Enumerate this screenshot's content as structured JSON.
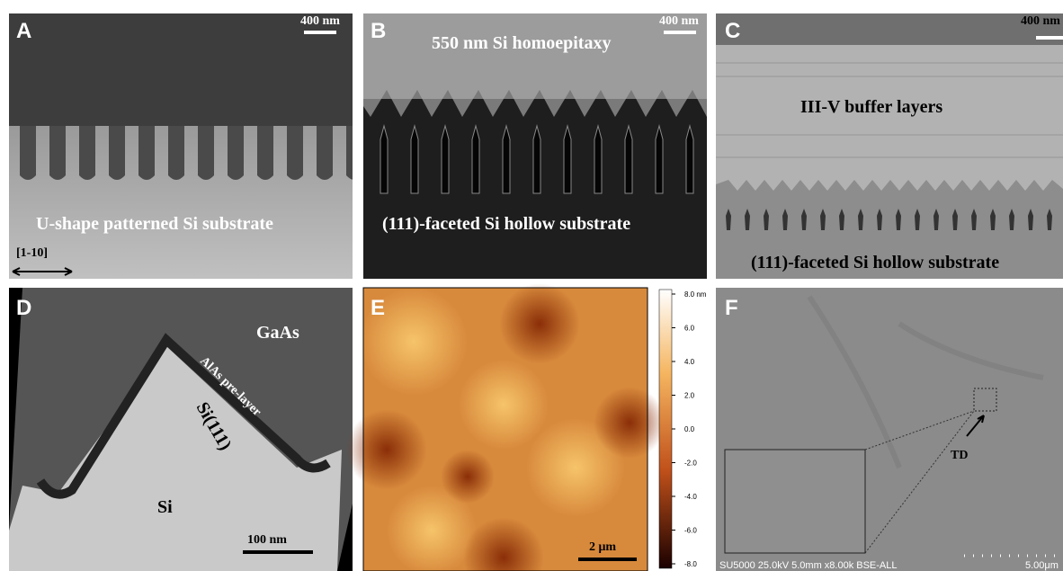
{
  "panels": [
    {
      "label": "A",
      "scale_bar": "400 nm",
      "caption": "U-shape patterned Si substrate",
      "direction": "[1-10]"
    },
    {
      "label": "B",
      "scale_bar": "400 nm",
      "top_text": "550 nm Si homoepitaxy",
      "caption": "(111)-faceted Si hollow substrate"
    },
    {
      "label": "C",
      "scale_bar": "400 nm",
      "top_text": "III-V buffer layers",
      "caption": "(111)-faceted Si hollow substrate"
    },
    {
      "label": "D",
      "top_text": "GaAs",
      "layer_text": "AlAs pre-layer",
      "facet_text": "Si(111)",
      "caption": "Si",
      "scale_bar": "100 nm"
    },
    {
      "label": "E",
      "scale_bar": "2 μm",
      "colorbar_ticks": [
        "8.0 nm",
        "6.0",
        "4.0",
        "2.0",
        "0.0",
        "-2.0",
        "-4.0",
        "-6.0",
        "-8.0"
      ]
    },
    {
      "label": "F",
      "marker": "TD",
      "footer": "SU5000 25.0kV 5.0mm x8.00k BSE-ALL",
      "scale_bar": "5.00μm"
    }
  ]
}
